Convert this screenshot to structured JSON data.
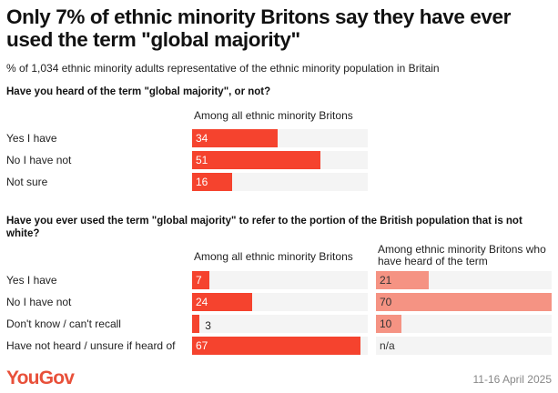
{
  "title": "Only 7% of ethnic minority Britons say they have ever used the term \"global majority\"",
  "subtitle": "% of 1,034 ethnic minority adults representative of the ethnic minority population in Britain",
  "colors": {
    "primary": "#f5432e",
    "secondary": "#f59383",
    "track": "#f4f4f4"
  },
  "chart_data": [
    {
      "type": "bar",
      "title": "Have you heard of the term \"global majority\", or not?",
      "categories": [
        "Yes I have",
        "No I have not",
        "Not sure"
      ],
      "series": [
        {
          "name": "Among all ethnic minority Britons",
          "values": [
            34,
            51,
            16
          ]
        }
      ],
      "xlim": [
        0,
        70
      ]
    },
    {
      "type": "bar",
      "title": "Have you ever used the term \"global majority\" to refer to the portion of the British population that is not white?",
      "categories": [
        "Yes I have",
        "No I have not",
        "Don't know / can't recall",
        "Have not heard / unsure if heard of"
      ],
      "series": [
        {
          "name": "Among all ethnic minority Britons",
          "values": [
            7,
            24,
            3,
            67
          ]
        },
        {
          "name": "Among ethnic minority Britons who have heard of the term",
          "values": [
            21,
            70,
            10,
            null
          ],
          "labels": [
            "21",
            "70",
            "10",
            "n/a"
          ]
        }
      ],
      "xlim": [
        0,
        70
      ]
    }
  ],
  "footer": {
    "logo": "YouGov",
    "date": "11-16 April 2025"
  }
}
